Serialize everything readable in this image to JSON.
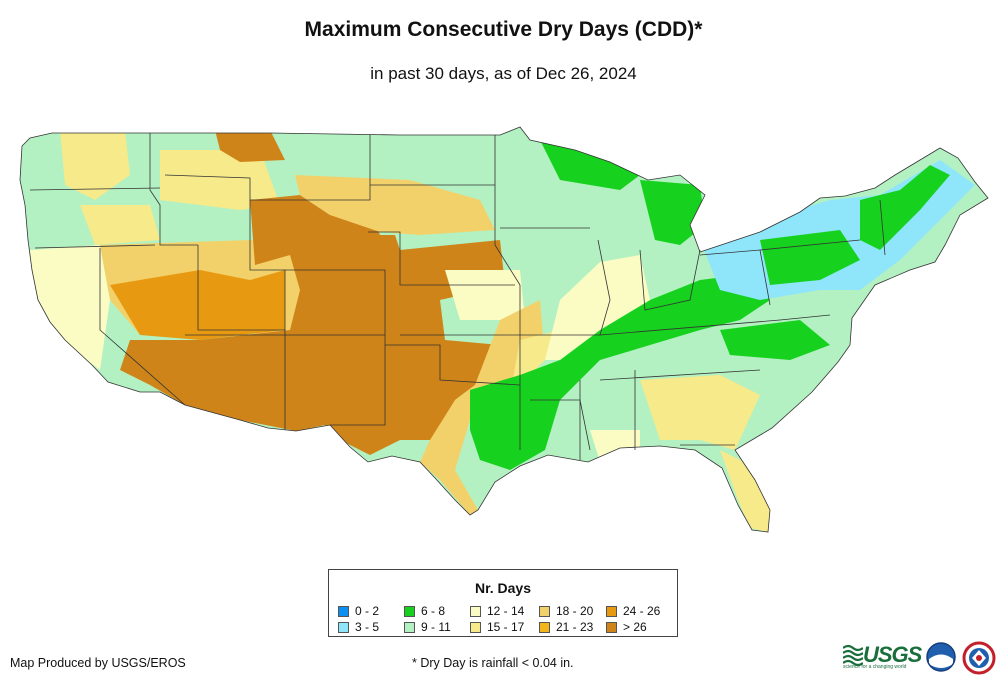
{
  "header": {
    "title": "Maximum Consecutive Dry Days (CDD)*",
    "subtitle": "in past 30 days, as of Dec 26, 2024"
  },
  "legend": {
    "title": "Nr. Days",
    "items": [
      {
        "label": "0 - 2",
        "color": "#0b8ff2"
      },
      {
        "label": "3 - 5",
        "color": "#8fe6fb"
      },
      {
        "label": "6 - 8",
        "color": "#16d11e"
      },
      {
        "label": "9 - 11",
        "color": "#b3f1c2"
      },
      {
        "label": "12 - 14",
        "color": "#fbfbc4"
      },
      {
        "label": "15 - 17",
        "color": "#f6ea8a"
      },
      {
        "label": "18 - 20",
        "color": "#f3d16a"
      },
      {
        "label": "21 - 23",
        "color": "#f2b61a"
      },
      {
        "label": "24 - 26",
        "color": "#e79a11"
      },
      {
        "label": "> 26",
        "color": "#cf8419"
      }
    ]
  },
  "footer": {
    "credit": "Map Produced by USGS/EROS",
    "footnote": "* Dry Day is rainfall < 0.04 in."
  },
  "logos": {
    "usgs": "USGS",
    "usgs_tagline": "science for a changing world",
    "noaa": "NOAA"
  }
}
